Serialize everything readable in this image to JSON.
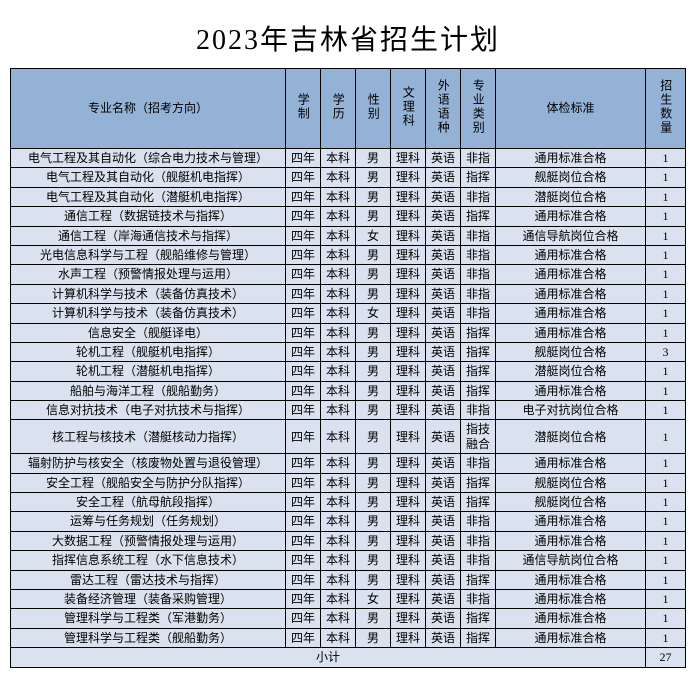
{
  "title": "2023年吉林省招生计划",
  "columns": {
    "major": "专业名称（招考方向）",
    "duration": "学制",
    "degree": "学历",
    "gender": "性别",
    "track": "文理科",
    "language": "外语语种",
    "category": "专业类别",
    "standard": "体检标准",
    "quota": "招生数量"
  },
  "rows": [
    {
      "major": "电气工程及其自动化（综合电力技术与管理）",
      "duration": "四年",
      "degree": "本科",
      "gender": "男",
      "track": "理科",
      "language": "英语",
      "category": "非指",
      "standard": "通用标准合格",
      "quota": "1"
    },
    {
      "major": "电气工程及其自动化（舰艇机电指挥）",
      "duration": "四年",
      "degree": "本科",
      "gender": "男",
      "track": "理科",
      "language": "英语",
      "category": "指挥",
      "standard": "舰艇岗位合格",
      "quota": "1"
    },
    {
      "major": "电气工程及其自动化（潜艇机电指挥）",
      "duration": "四年",
      "degree": "本科",
      "gender": "男",
      "track": "理科",
      "language": "英语",
      "category": "非指",
      "standard": "潜艇岗位合格",
      "quota": "1"
    },
    {
      "major": "通信工程（数据链技术与指挥）",
      "duration": "四年",
      "degree": "本科",
      "gender": "男",
      "track": "理科",
      "language": "英语",
      "category": "指挥",
      "standard": "通用标准合格",
      "quota": "1"
    },
    {
      "major": "通信工程（岸海通信技术与指挥）",
      "duration": "四年",
      "degree": "本科",
      "gender": "女",
      "track": "理科",
      "language": "英语",
      "category": "非指",
      "standard": "通信导航岗位合格",
      "quota": "1"
    },
    {
      "major": "光电信息科学与工程（舰船维修与管理）",
      "duration": "四年",
      "degree": "本科",
      "gender": "男",
      "track": "理科",
      "language": "英语",
      "category": "非指",
      "standard": "通用标准合格",
      "quota": "1"
    },
    {
      "major": "水声工程（预警情报处理与运用）",
      "duration": "四年",
      "degree": "本科",
      "gender": "男",
      "track": "理科",
      "language": "英语",
      "category": "非指",
      "standard": "通用标准合格",
      "quota": "1"
    },
    {
      "major": "计算机科学与技术（装备仿真技术）",
      "duration": "四年",
      "degree": "本科",
      "gender": "男",
      "track": "理科",
      "language": "英语",
      "category": "非指",
      "standard": "通用标准合格",
      "quota": "1"
    },
    {
      "major": "计算机科学与技术（装备仿真技术）",
      "duration": "四年",
      "degree": "本科",
      "gender": "女",
      "track": "理科",
      "language": "英语",
      "category": "非指",
      "standard": "通用标准合格",
      "quota": "1"
    },
    {
      "major": "信息安全（舰艇译电）",
      "duration": "四年",
      "degree": "本科",
      "gender": "男",
      "track": "理科",
      "language": "英语",
      "category": "指挥",
      "standard": "通用标准合格",
      "quota": "1"
    },
    {
      "major": "轮机工程（舰艇机电指挥）",
      "duration": "四年",
      "degree": "本科",
      "gender": "男",
      "track": "理科",
      "language": "英语",
      "category": "指挥",
      "standard": "舰艇岗位合格",
      "quota": "3"
    },
    {
      "major": "轮机工程（潜艇机电指挥）",
      "duration": "四年",
      "degree": "本科",
      "gender": "男",
      "track": "理科",
      "language": "英语",
      "category": "指挥",
      "standard": "潜艇岗位合格",
      "quota": "1"
    },
    {
      "major": "船舶与海洋工程（舰船勤务）",
      "duration": "四年",
      "degree": "本科",
      "gender": "男",
      "track": "理科",
      "language": "英语",
      "category": "指挥",
      "standard": "通用标准合格",
      "quota": "1"
    },
    {
      "major": "信息对抗技术（电子对抗技术与指挥）",
      "duration": "四年",
      "degree": "本科",
      "gender": "男",
      "track": "理科",
      "language": "英语",
      "category": "非指",
      "standard": "电子对抗岗位合格",
      "quota": "1"
    },
    {
      "major": "核工程与核技术（潜艇核动力指挥）",
      "duration": "四年",
      "degree": "本科",
      "gender": "男",
      "track": "理科",
      "language": "英语",
      "category": "指技融合",
      "standard": "潜艇岗位合格",
      "quota": "1"
    },
    {
      "major": "辐射防护与核安全（核废物处置与退役管理）",
      "duration": "四年",
      "degree": "本科",
      "gender": "男",
      "track": "理科",
      "language": "英语",
      "category": "非指",
      "standard": "通用标准合格",
      "quota": "1"
    },
    {
      "major": "安全工程（舰船安全与防护分队指挥）",
      "duration": "四年",
      "degree": "本科",
      "gender": "男",
      "track": "理科",
      "language": "英语",
      "category": "指挥",
      "standard": "舰艇岗位合格",
      "quota": "1"
    },
    {
      "major": "安全工程（航母航段指挥）",
      "duration": "四年",
      "degree": "本科",
      "gender": "男",
      "track": "理科",
      "language": "英语",
      "category": "指挥",
      "standard": "舰艇岗位合格",
      "quota": "1"
    },
    {
      "major": "运筹与任务规划（任务规划）",
      "duration": "四年",
      "degree": "本科",
      "gender": "男",
      "track": "理科",
      "language": "英语",
      "category": "非指",
      "standard": "通用标准合格",
      "quota": "1"
    },
    {
      "major": "大数据工程（预警情报处理与运用）",
      "duration": "四年",
      "degree": "本科",
      "gender": "男",
      "track": "理科",
      "language": "英语",
      "category": "非指",
      "standard": "通用标准合格",
      "quota": "1"
    },
    {
      "major": "指挥信息系统工程（水下信息技术）",
      "duration": "四年",
      "degree": "本科",
      "gender": "男",
      "track": "理科",
      "language": "英语",
      "category": "非指",
      "standard": "通信导航岗位合格",
      "quota": "1"
    },
    {
      "major": "雷达工程（雷达技术与指挥）",
      "duration": "四年",
      "degree": "本科",
      "gender": "男",
      "track": "理科",
      "language": "英语",
      "category": "指挥",
      "standard": "通用标准合格",
      "quota": "1"
    },
    {
      "major": "装备经济管理（装备采购管理）",
      "duration": "四年",
      "degree": "本科",
      "gender": "女",
      "track": "理科",
      "language": "英语",
      "category": "非指",
      "standard": "通用标准合格",
      "quota": "1"
    },
    {
      "major": "管理科学与工程类（军港勤务）",
      "duration": "四年",
      "degree": "本科",
      "gender": "男",
      "track": "理科",
      "language": "英语",
      "category": "指挥",
      "standard": "通用标准合格",
      "quota": "1"
    },
    {
      "major": "管理科学与工程类（舰船勤务）",
      "duration": "四年",
      "degree": "本科",
      "gender": "男",
      "track": "理科",
      "language": "英语",
      "category": "指挥",
      "standard": "通用标准合格",
      "quota": "1"
    }
  ],
  "subtotal": {
    "label": "小计",
    "value": "27"
  },
  "colors": {
    "header_bg": "#94b2d6",
    "row_bg": "#d9e2ee",
    "border": "#000000",
    "page_bg": "#ffffff"
  }
}
